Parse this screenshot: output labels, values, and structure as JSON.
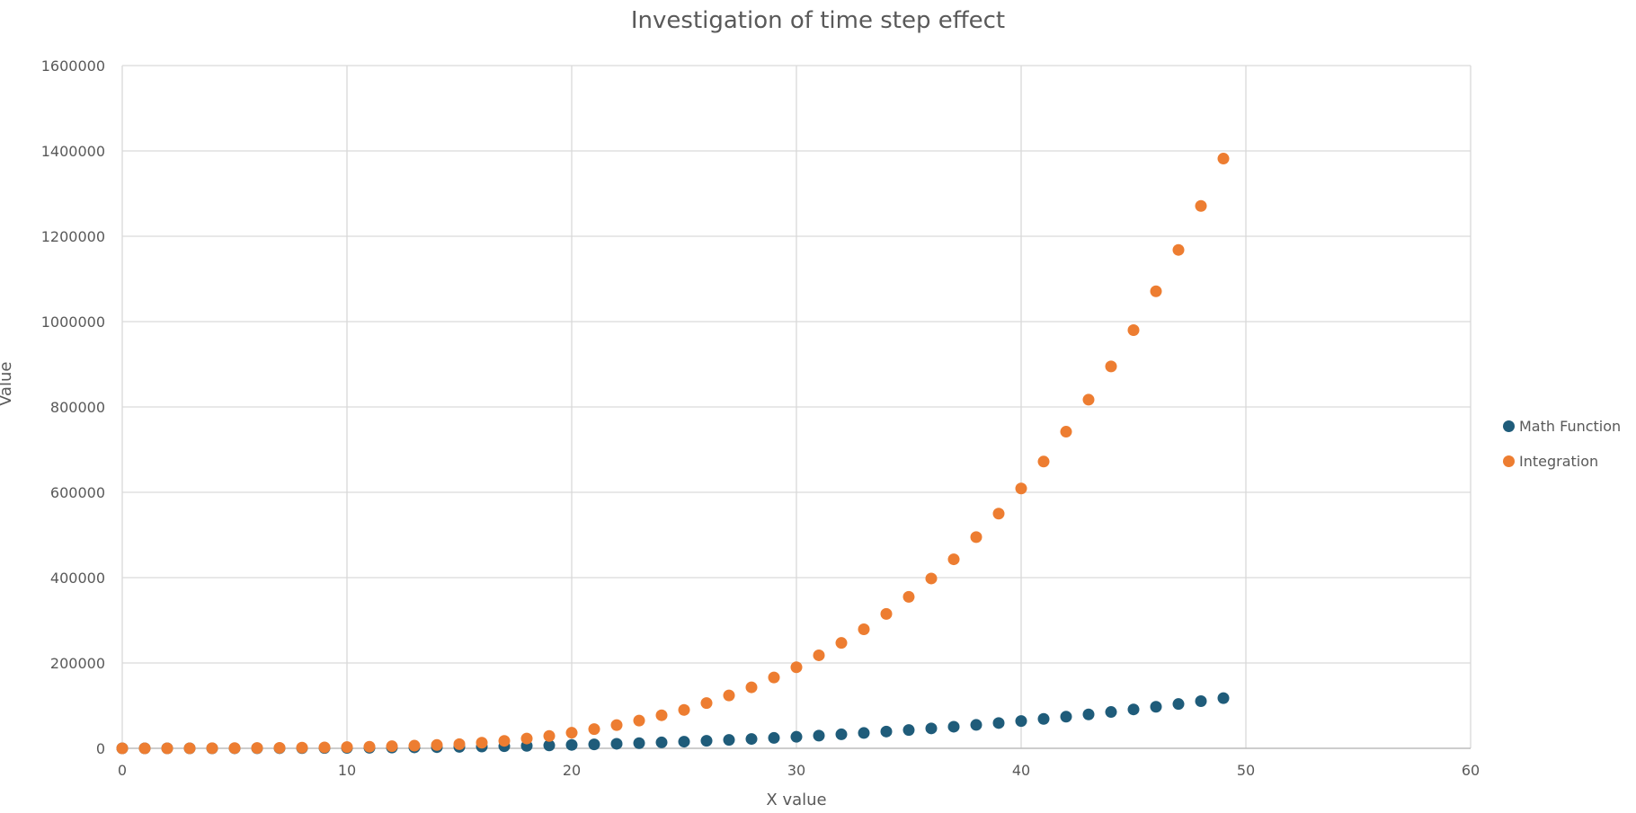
{
  "chart_data": {
    "type": "scatter",
    "title": "Investigation of time step effect",
    "xlabel": "X value",
    "ylabel": "Value",
    "xlim": [
      0,
      60
    ],
    "ylim": [
      0,
      1600000
    ],
    "x_ticks": [
      0,
      10,
      20,
      30,
      40,
      50,
      60
    ],
    "y_ticks": [
      0,
      200000,
      400000,
      600000,
      800000,
      1000000,
      1200000,
      1400000,
      1600000
    ],
    "grid": true,
    "legend_position": "right",
    "series": [
      {
        "name": "Math Function",
        "color": "#1F5C7A",
        "x": [
          0,
          1,
          2,
          3,
          4,
          5,
          6,
          7,
          8,
          9,
          10,
          11,
          12,
          13,
          14,
          15,
          16,
          17,
          18,
          19,
          20,
          21,
          22,
          23,
          24,
          25,
          26,
          27,
          28,
          29,
          30,
          31,
          32,
          33,
          34,
          35,
          36,
          37,
          38,
          39,
          40,
          41,
          42,
          43,
          44,
          45,
          46,
          47,
          48,
          49
        ],
        "y": [
          0,
          1,
          8,
          27,
          64,
          125,
          216,
          343,
          512,
          729,
          1000,
          1331,
          1728,
          2197,
          2744,
          3375,
          4096,
          4913,
          5832,
          6859,
          8000,
          9261,
          10648,
          12167,
          13824,
          15625,
          17576,
          19683,
          21952,
          24389,
          27000,
          29791,
          32768,
          35937,
          39304,
          42875,
          46656,
          50653,
          54872,
          59319,
          64000,
          68921,
          74088,
          79507,
          85184,
          91125,
          97336,
          103823,
          110592,
          117649
        ]
      },
      {
        "name": "Integration",
        "color": "#ED7D31",
        "x": [
          0,
          1,
          2,
          3,
          4,
          5,
          6,
          7,
          8,
          9,
          10,
          11,
          12,
          13,
          14,
          15,
          16,
          17,
          18,
          19,
          20,
          21,
          22,
          23,
          24,
          25,
          26,
          27,
          28,
          29,
          30,
          31,
          32,
          33,
          34,
          35,
          36,
          37,
          38,
          39,
          40,
          41,
          42,
          43,
          44,
          45,
          46,
          47,
          48,
          49
        ],
        "y": [
          0,
          2,
          25,
          100,
          250,
          480,
          780,
          1150,
          1610,
          2200,
          2900,
          3800,
          4900,
          6200,
          7800,
          9700,
          13200,
          17500,
          23000,
          29000,
          36500,
          45000,
          54500,
          65000,
          77500,
          90000,
          106000,
          124000,
          143000,
          166000,
          190000,
          218000,
          247000,
          279000,
          315000,
          355000,
          398000,
          443000,
          495000,
          550000,
          609000,
          672000,
          742000,
          817000,
          895000,
          980000,
          1071000,
          1168000,
          1271000,
          1382000
        ]
      }
    ]
  }
}
